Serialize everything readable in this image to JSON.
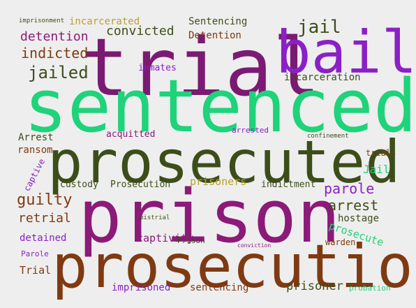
{
  "words": [
    {
      "text": "trial",
      "color": "#7b1a72"
    },
    {
      "text": "bail",
      "color": "#8a21c5"
    },
    {
      "text": "sentenced",
      "color": "#1ed37a"
    },
    {
      "text": "prosecuted",
      "color": "#3d4d1a"
    },
    {
      "text": "prison",
      "color": "#8b1a79"
    },
    {
      "text": "prosecution",
      "color": "#7f3a12"
    },
    {
      "text": "imprisonment",
      "color": "#3d4d1a"
    },
    {
      "text": "incarcerated",
      "color": "#bba12e"
    },
    {
      "text": "Sentencing",
      "color": "#3d4d1a"
    },
    {
      "text": "convicted",
      "color": "#3d4d1a"
    },
    {
      "text": "Detention",
      "color": "#7f3a12"
    },
    {
      "text": "jail",
      "color": "#3d4d1a"
    },
    {
      "text": "detention",
      "color": "#8b1a79"
    },
    {
      "text": "indicted",
      "color": "#7f3a12"
    },
    {
      "text": "jailed",
      "color": "#3d4d1a"
    },
    {
      "text": "inmates",
      "color": "#8a21c5"
    },
    {
      "text": "incarceration",
      "color": "#3d4d1a"
    },
    {
      "text": "Arrest",
      "color": "#3d4d1a"
    },
    {
      "text": "acquitted",
      "color": "#8b1a79"
    },
    {
      "text": "arrested",
      "color": "#8a21c5"
    },
    {
      "text": "confinement",
      "color": "#3d4d1a"
    },
    {
      "text": "ransom",
      "color": "#7f3a12"
    },
    {
      "text": "captive",
      "color": "#8a21c5"
    },
    {
      "text": "custody",
      "color": "#3d4d1a"
    },
    {
      "text": "Prosecution",
      "color": "#3d4d1a"
    },
    {
      "text": "prisoners",
      "color": "#bba12e"
    },
    {
      "text": "indictment",
      "color": "#3d4d1a"
    },
    {
      "text": "trials",
      "color": "#7f3a12"
    },
    {
      "text": "Jail",
      "color": "#1ed37a"
    },
    {
      "text": "parole",
      "color": "#8a21c5"
    },
    {
      "text": "guilty",
      "color": "#7f3a12"
    },
    {
      "text": "retrial",
      "color": "#7f3a12"
    },
    {
      "text": "detained",
      "color": "#8a21c5"
    },
    {
      "text": "Parole",
      "color": "#8a21c5"
    },
    {
      "text": "Trial",
      "color": "#7f3a12"
    },
    {
      "text": "mistrial",
      "color": "#3d4d1a"
    },
    {
      "text": "captivity",
      "color": "#8b1a79"
    },
    {
      "text": "Prison",
      "color": "#3d4d1a"
    },
    {
      "text": "arrest",
      "color": "#3d4d1a"
    },
    {
      "text": "hostage",
      "color": "#3d4d1a"
    },
    {
      "text": "prosecute",
      "color": "#1ed37a"
    },
    {
      "text": "warden",
      "color": "#7f3a12"
    },
    {
      "text": "conviction",
      "color": "#8b1a79"
    },
    {
      "text": "imprisoned",
      "color": "#8a21c5"
    },
    {
      "text": "sentencing",
      "color": "#7f3a12"
    },
    {
      "text": "prisoner",
      "color": "#3d4d1a"
    },
    {
      "text": "probation",
      "color": "#1ed37a"
    }
  ]
}
